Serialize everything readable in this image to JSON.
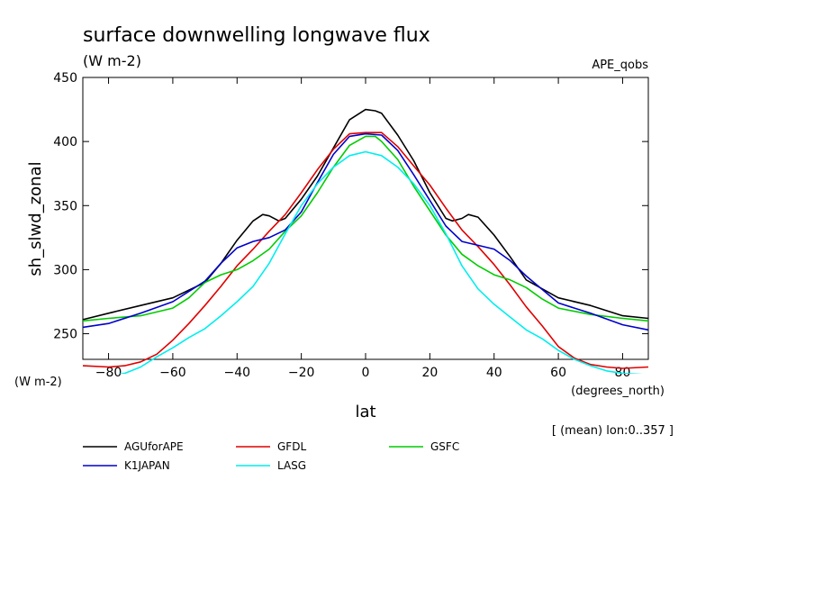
{
  "chart_data": {
    "type": "line",
    "title": "surface downwelling longwave flux",
    "units": "(W m-2)",
    "experiment": "APE_qobs",
    "ylabel": "sh_slwd_zonal",
    "y_units": "(W m-2)",
    "xlabel": "lat",
    "x_units": "(degrees_north)",
    "footnote": "[ (mean) lon:0..357 ]",
    "xlim": [
      -88,
      88
    ],
    "ylim": [
      230,
      450
    ],
    "xticks": [
      -80,
      -60,
      -40,
      -20,
      0,
      20,
      40,
      60,
      80
    ],
    "yticks": [
      250,
      300,
      350,
      400,
      450
    ],
    "legend_position": "bottom",
    "series": [
      {
        "name": "AGUforAPE",
        "color": "#000000",
        "x": [
          -88,
          -80,
          -70,
          -60,
          -50,
          -45,
          -40,
          -35,
          -32,
          -30,
          -27,
          -25,
          -20,
          -15,
          -10,
          -5,
          0,
          3,
          5,
          10,
          15,
          20,
          25,
          27,
          30,
          32,
          35,
          40,
          45,
          50,
          60,
          70,
          80,
          88
        ],
        "y": [
          261,
          266,
          272,
          278,
          290,
          305,
          323,
          338,
          343,
          342,
          338,
          340,
          355,
          373,
          395,
          417,
          425,
          424,
          422,
          405,
          385,
          360,
          340,
          338,
          340,
          343,
          341,
          327,
          310,
          292,
          278,
          272,
          264,
          262
        ]
      },
      {
        "name": "GFDL",
        "color": "#e00000",
        "x": [
          -88,
          -80,
          -75,
          -70,
          -65,
          -60,
          -55,
          -50,
          -45,
          -40,
          -35,
          -30,
          -25,
          -20,
          -15,
          -10,
          -5,
          0,
          5,
          10,
          15,
          20,
          25,
          30,
          35,
          40,
          45,
          50,
          55,
          60,
          65,
          70,
          75,
          80,
          88
        ],
        "y": [
          225,
          224,
          225,
          228,
          234,
          245,
          258,
          272,
          287,
          303,
          316,
          330,
          343,
          360,
          378,
          394,
          406,
          407,
          407,
          396,
          381,
          366,
          348,
          331,
          318,
          304,
          288,
          271,
          256,
          240,
          231,
          226,
          224,
          223,
          224
        ]
      },
      {
        "name": "GSFC",
        "color": "#00cc00",
        "x": [
          -88,
          -80,
          -70,
          -60,
          -55,
          -50,
          -45,
          -40,
          -35,
          -30,
          -25,
          -20,
          -15,
          -10,
          -5,
          0,
          3,
          5,
          10,
          15,
          20,
          25,
          30,
          35,
          40,
          45,
          50,
          55,
          60,
          70,
          80,
          88
        ],
        "y": [
          260,
          262,
          264,
          270,
          278,
          290,
          296,
          300,
          307,
          316,
          330,
          342,
          360,
          380,
          397,
          404,
          404,
          400,
          386,
          365,
          346,
          327,
          312,
          303,
          296,
          292,
          286,
          277,
          270,
          265,
          262,
          260
        ]
      },
      {
        "name": "K1JAPAN",
        "color": "#0000cc",
        "x": [
          -88,
          -80,
          -70,
          -60,
          -50,
          -45,
          -40,
          -35,
          -30,
          -25,
          -20,
          -15,
          -10,
          -5,
          0,
          5,
          10,
          15,
          20,
          25,
          30,
          35,
          40,
          45,
          50,
          60,
          70,
          80,
          88
        ],
        "y": [
          255,
          258,
          266,
          275,
          291,
          305,
          317,
          322,
          325,
          331,
          345,
          368,
          390,
          404,
          406,
          405,
          393,
          374,
          354,
          334,
          322,
          319,
          316,
          307,
          295,
          274,
          266,
          257,
          253
        ]
      },
      {
        "name": "LASG",
        "color": "#00eeee",
        "x": [
          -88,
          -80,
          -75,
          -70,
          -65,
          -60,
          -55,
          -50,
          -45,
          -40,
          -35,
          -30,
          -25,
          -20,
          -15,
          -10,
          -5,
          0,
          5,
          10,
          15,
          20,
          25,
          30,
          35,
          40,
          45,
          50,
          55,
          60,
          65,
          70,
          75,
          80,
          88
        ],
        "y": [
          217,
          217,
          219,
          224,
          232,
          239,
          247,
          254,
          264,
          275,
          287,
          305,
          328,
          350,
          367,
          380,
          389,
          392,
          389,
          380,
          367,
          350,
          328,
          303,
          285,
          273,
          263,
          253,
          246,
          237,
          230,
          225,
          221,
          219,
          218
        ]
      }
    ]
  }
}
